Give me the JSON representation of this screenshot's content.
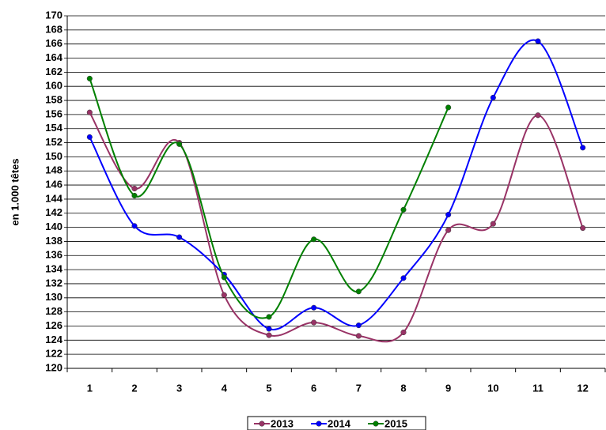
{
  "chart_data": {
    "type": "line",
    "y_label": "en 1.000 têtes",
    "categories": [
      "1",
      "2",
      "3",
      "4",
      "5",
      "6",
      "7",
      "8",
      "9",
      "10",
      "11",
      "12"
    ],
    "series": [
      {
        "name": "2013",
        "color": "#993366",
        "values": [
          156.3,
          145.5,
          152.0,
          130.4,
          124.7,
          126.5,
          124.6,
          125.1,
          139.6,
          140.5,
          155.9,
          139.9
        ]
      },
      {
        "name": "2014",
        "color": "#0000ff",
        "values": [
          152.8,
          140.2,
          138.6,
          133.3,
          125.6,
          128.6,
          126.1,
          132.8,
          141.8,
          158.4,
          166.4,
          151.3
        ]
      },
      {
        "name": "2015",
        "color": "#008000",
        "values": [
          161.1,
          144.5,
          151.8,
          132.9,
          127.3,
          138.3,
          130.9,
          142.5,
          157.0,
          null,
          null,
          null
        ]
      }
    ],
    "ylim": [
      120,
      170
    ],
    "yticks": [
      120,
      122,
      124,
      126,
      128,
      130,
      132,
      134,
      136,
      138,
      140,
      142,
      144,
      146,
      148,
      150,
      152,
      154,
      156,
      158,
      160,
      162,
      164,
      166,
      168,
      170
    ],
    "grid": true,
    "smooth": true,
    "legend": "bottom"
  }
}
